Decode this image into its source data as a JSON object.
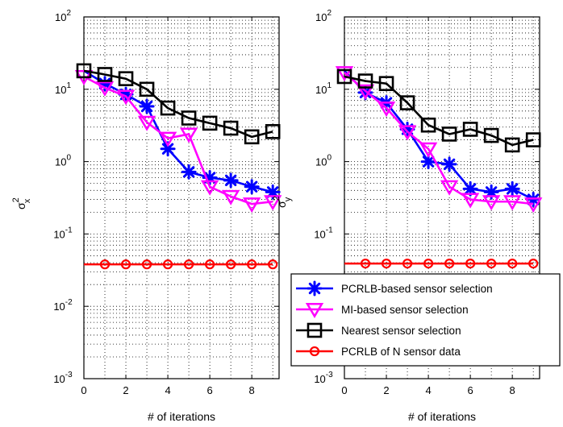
{
  "chart_data": [
    {
      "type": "line",
      "xlabel": "# of iterations",
      "ylabel": "σ_x^2",
      "yscale": "log",
      "xlim": [
        0,
        9.3
      ],
      "ylim": [
        0.001,
        100
      ],
      "grid": true,
      "xticks": [
        "0",
        "2",
        "4",
        "6",
        "8"
      ],
      "yticks": [
        {
          "base": "10",
          "exp": "-3"
        },
        {
          "base": "10",
          "exp": "-2"
        },
        {
          "base": "10",
          "exp": "-1"
        },
        {
          "base": "10",
          "exp": "0"
        },
        {
          "base": "10",
          "exp": "1"
        },
        {
          "base": "10",
          "exp": "2"
        }
      ],
      "series": [
        {
          "name": "PCRLB-based sensor selection",
          "color": "#0000ff",
          "marker": "asterisk",
          "x": [
            0,
            1,
            2,
            3,
            4,
            5,
            6,
            7,
            8,
            9
          ],
          "y": [
            18,
            12,
            8.5,
            5.8,
            1.5,
            0.72,
            0.6,
            0.55,
            0.45,
            0.38
          ]
        },
        {
          "name": "MI-based sensor selection",
          "color": "#ff00ff",
          "marker": "triangle-down",
          "x": [
            0,
            1,
            2,
            3,
            4,
            5,
            6,
            7,
            8,
            9
          ],
          "y": [
            15,
            10.5,
            8,
            3.5,
            2.1,
            2.4,
            0.45,
            0.33,
            0.26,
            0.28
          ]
        },
        {
          "name": "Nearest sensor selection",
          "color": "#000000",
          "marker": "square",
          "x": [
            0,
            1,
            2,
            3,
            4,
            5,
            6,
            7,
            8,
            9
          ],
          "y": [
            18,
            16,
            14,
            10,
            5.5,
            4,
            3.4,
            2.9,
            2.2,
            2.6
          ]
        },
        {
          "name": "PCRLB of N sensor data",
          "color": "#ff0000",
          "marker": "circle",
          "x": [
            0,
            1,
            2,
            3,
            4,
            5,
            6,
            7,
            8,
            9
          ],
          "y": [
            0.038,
            0.038,
            0.038,
            0.038,
            0.038,
            0.038,
            0.038,
            0.038,
            0.038,
            0.038
          ]
        }
      ]
    },
    {
      "type": "line",
      "xlabel": "# of iterations",
      "ylabel": "σ_y^2",
      "yscale": "log",
      "xlim": [
        0,
        9.3
      ],
      "ylim": [
        0.001,
        100
      ],
      "grid": true,
      "legend_position": "bottom-right",
      "xticks": [
        "0",
        "2",
        "4",
        "6",
        "8"
      ],
      "yticks": [
        {
          "base": "10",
          "exp": "-3"
        },
        {
          "base": "10",
          "exp": "-2"
        },
        {
          "base": "10",
          "exp": "-1"
        },
        {
          "base": "10",
          "exp": "0"
        },
        {
          "base": "10",
          "exp": "1"
        },
        {
          "base": "10",
          "exp": "2"
        }
      ],
      "series": [
        {
          "name": "PCRLB-based sensor selection",
          "color": "#0000ff",
          "marker": "asterisk",
          "x": [
            0,
            1,
            2,
            3,
            4,
            5,
            6,
            7,
            8,
            9
          ],
          "y": [
            18,
            9,
            6.5,
            2.8,
            1,
            0.92,
            0.42,
            0.38,
            0.42,
            0.3
          ]
        },
        {
          "name": "MI-based sensor selection",
          "color": "#ff00ff",
          "marker": "triangle-down",
          "x": [
            0,
            1,
            2,
            3,
            4,
            5,
            6,
            7,
            8,
            9
          ],
          "y": [
            17,
            9.5,
            5.5,
            2.6,
            1.5,
            0.45,
            0.3,
            0.28,
            0.28,
            0.26
          ]
        },
        {
          "name": "Nearest sensor selection",
          "color": "#000000",
          "marker": "square",
          "x": [
            0,
            1,
            2,
            3,
            4,
            5,
            6,
            7,
            8,
            9
          ],
          "y": [
            15,
            13,
            12,
            6.5,
            3.2,
            2.4,
            2.8,
            2.3,
            1.7,
            2
          ]
        },
        {
          "name": "PCRLB of N sensor data",
          "color": "#ff0000",
          "marker": "circle",
          "x": [
            0,
            1,
            2,
            3,
            4,
            5,
            6,
            7,
            8,
            9
          ],
          "y": [
            0.039,
            0.039,
            0.039,
            0.039,
            0.039,
            0.039,
            0.039,
            0.039,
            0.039,
            0.039
          ]
        }
      ]
    }
  ]
}
